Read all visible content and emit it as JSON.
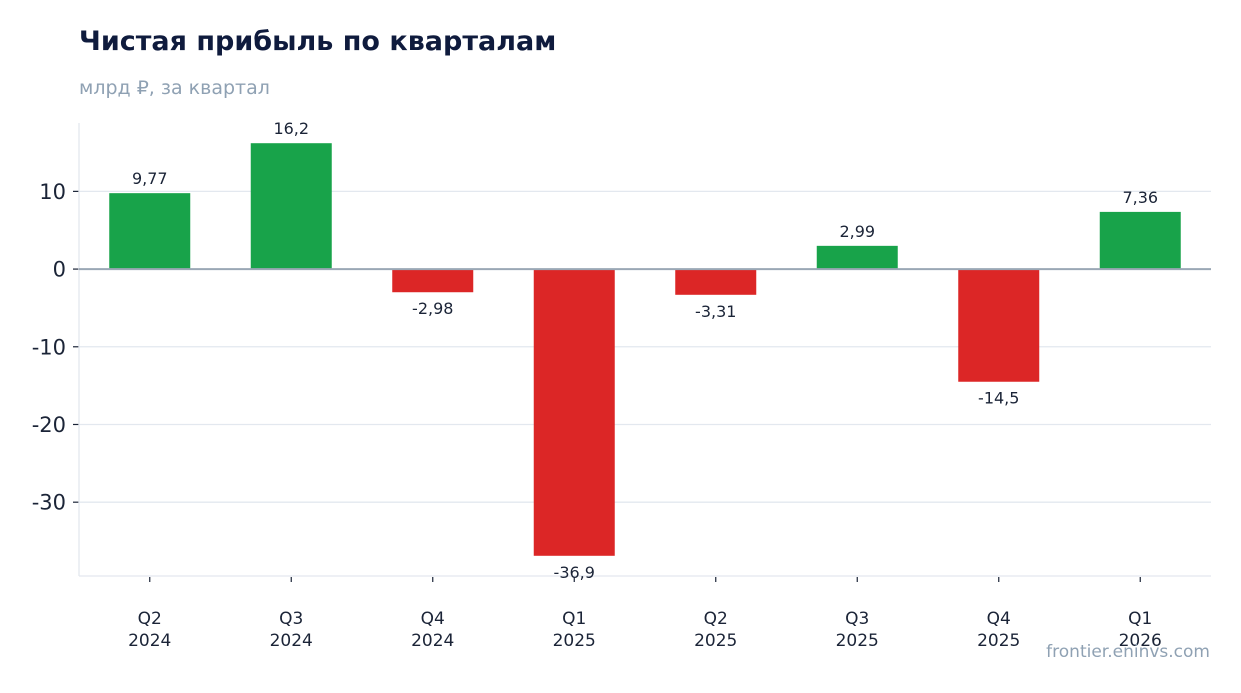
{
  "header": {
    "title": "Чистая прибыль по кварталам",
    "subtitle": "млрд ₽, за квартал"
  },
  "footer": {
    "source": "frontier.eninvs.com"
  },
  "chart_data": {
    "type": "bar",
    "title": "Чистая прибыль по кварталам",
    "subtitle": "млрд ₽, за квартал",
    "categories": [
      [
        "Q2",
        "2024"
      ],
      [
        "Q3",
        "2024"
      ],
      [
        "Q4",
        "2024"
      ],
      [
        "Q1",
        "2025"
      ],
      [
        "Q2",
        "2025"
      ],
      [
        "Q3",
        "2025"
      ],
      [
        "Q4",
        "2025"
      ],
      [
        "Q1",
        "2026"
      ]
    ],
    "values": [
      9.77,
      16.2,
      -2.98,
      -36.9,
      -3.31,
      2.99,
      -14.5,
      7.36
    ],
    "value_labels": [
      "9,77",
      "16,2",
      "-2,98",
      "-36,9",
      "-3,31",
      "2,99",
      "-14,5",
      "7,36"
    ],
    "ylim": [
      -39.5,
      18.8
    ],
    "yticks": [
      10,
      0,
      -10,
      -20,
      -30
    ],
    "ytick_labels": [
      "10",
      "0",
      "-10",
      "-20",
      "-30"
    ],
    "grid": true,
    "colors": {
      "positive": "#18a34a",
      "negative": "#dc2626",
      "zero_line": "#9aa7b5",
      "grid": "#e3e8ef"
    }
  }
}
